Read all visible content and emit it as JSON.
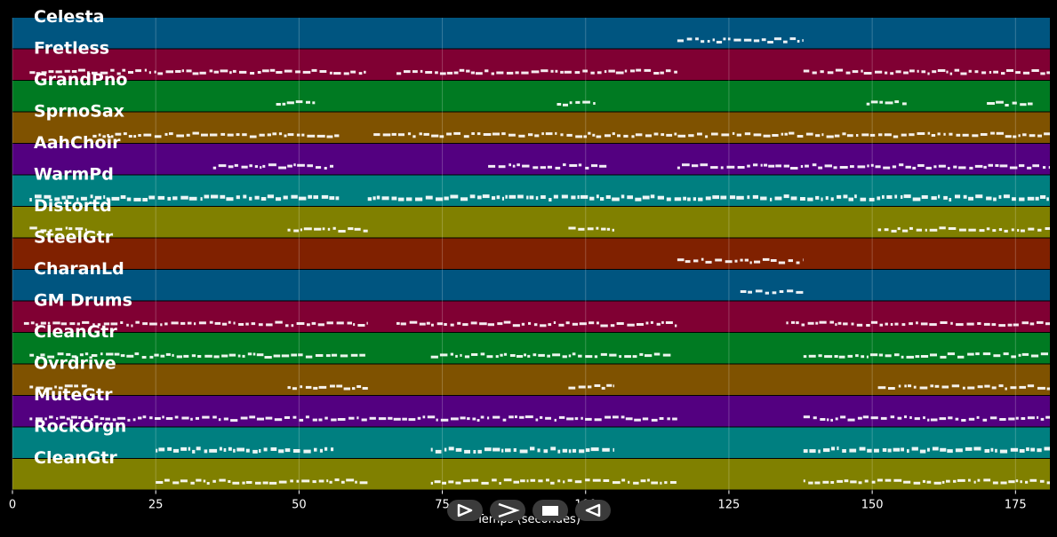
{
  "tracks": [
    {
      "name": "Celesta",
      "color": "#005580"
    },
    {
      "name": "Fretless",
      "color": "#800033"
    },
    {
      "name": "GrandPno",
      "color": "#007a22"
    },
    {
      "name": "SprnoSax",
      "color": "#7f5200"
    },
    {
      "name": "AahChoir",
      "color": "#530080"
    },
    {
      "name": "WarmPd",
      "color": "#007f80"
    },
    {
      "name": "Distortd",
      "color": "#808000"
    },
    {
      "name": "SteelGtr",
      "color": "#802100"
    },
    {
      "name": "CharanLd",
      "color": "#005580"
    },
    {
      "name": "GM Drums",
      "color": "#800033"
    },
    {
      "name": "CleanGtr",
      "color": "#007a22"
    },
    {
      "name": "Ovrdrive",
      "color": "#7f5200"
    },
    {
      "name": "MuteGtr",
      "color": "#530080"
    },
    {
      "name": "RockOrgn",
      "color": "#007f80"
    },
    {
      "name": "CleanGtr",
      "color": "#808000"
    }
  ],
  "x_axis": {
    "label": "Temps (secondes)",
    "min": 0,
    "max": 181,
    "ticks": [
      "0",
      "25",
      "50",
      "75",
      "100",
      "125",
      "150",
      "175"
    ]
  },
  "note_segments": [
    [
      [
        116,
        138
      ]
    ],
    [
      [
        3,
        62
      ],
      [
        67,
        116
      ],
      [
        138,
        181
      ]
    ],
    [
      [
        46,
        53
      ],
      [
        95,
        102
      ],
      [
        149,
        156
      ],
      [
        170,
        178
      ]
    ],
    [
      [
        14,
        57
      ],
      [
        63,
        181
      ]
    ],
    [
      [
        35,
        56
      ],
      [
        83,
        104
      ],
      [
        116,
        181
      ]
    ],
    [
      [
        3,
        57
      ],
      [
        62,
        181
      ]
    ],
    [
      [
        3,
        13
      ],
      [
        48,
        62
      ],
      [
        97,
        105
      ],
      [
        151,
        181
      ]
    ],
    [
      [
        116,
        138
      ]
    ],
    [
      [
        127,
        138
      ]
    ],
    [
      [
        2,
        62
      ],
      [
        67,
        116
      ],
      [
        135,
        181
      ]
    ],
    [
      [
        3,
        62
      ],
      [
        73,
        115
      ],
      [
        138,
        181
      ]
    ],
    [
      [
        3,
        13
      ],
      [
        48,
        62
      ],
      [
        97,
        105
      ],
      [
        151,
        181
      ]
    ],
    [
      [
        3,
        116
      ],
      [
        138,
        181
      ]
    ],
    [
      [
        25,
        56
      ],
      [
        73,
        105
      ],
      [
        138,
        181
      ]
    ],
    [
      [
        25,
        62
      ],
      [
        73,
        116
      ],
      [
        138,
        181
      ]
    ]
  ],
  "controls": [
    {
      "name": "play-icon"
    },
    {
      "name": "forward-icon"
    },
    {
      "name": "stop-icon"
    },
    {
      "name": "rewind-icon"
    }
  ]
}
